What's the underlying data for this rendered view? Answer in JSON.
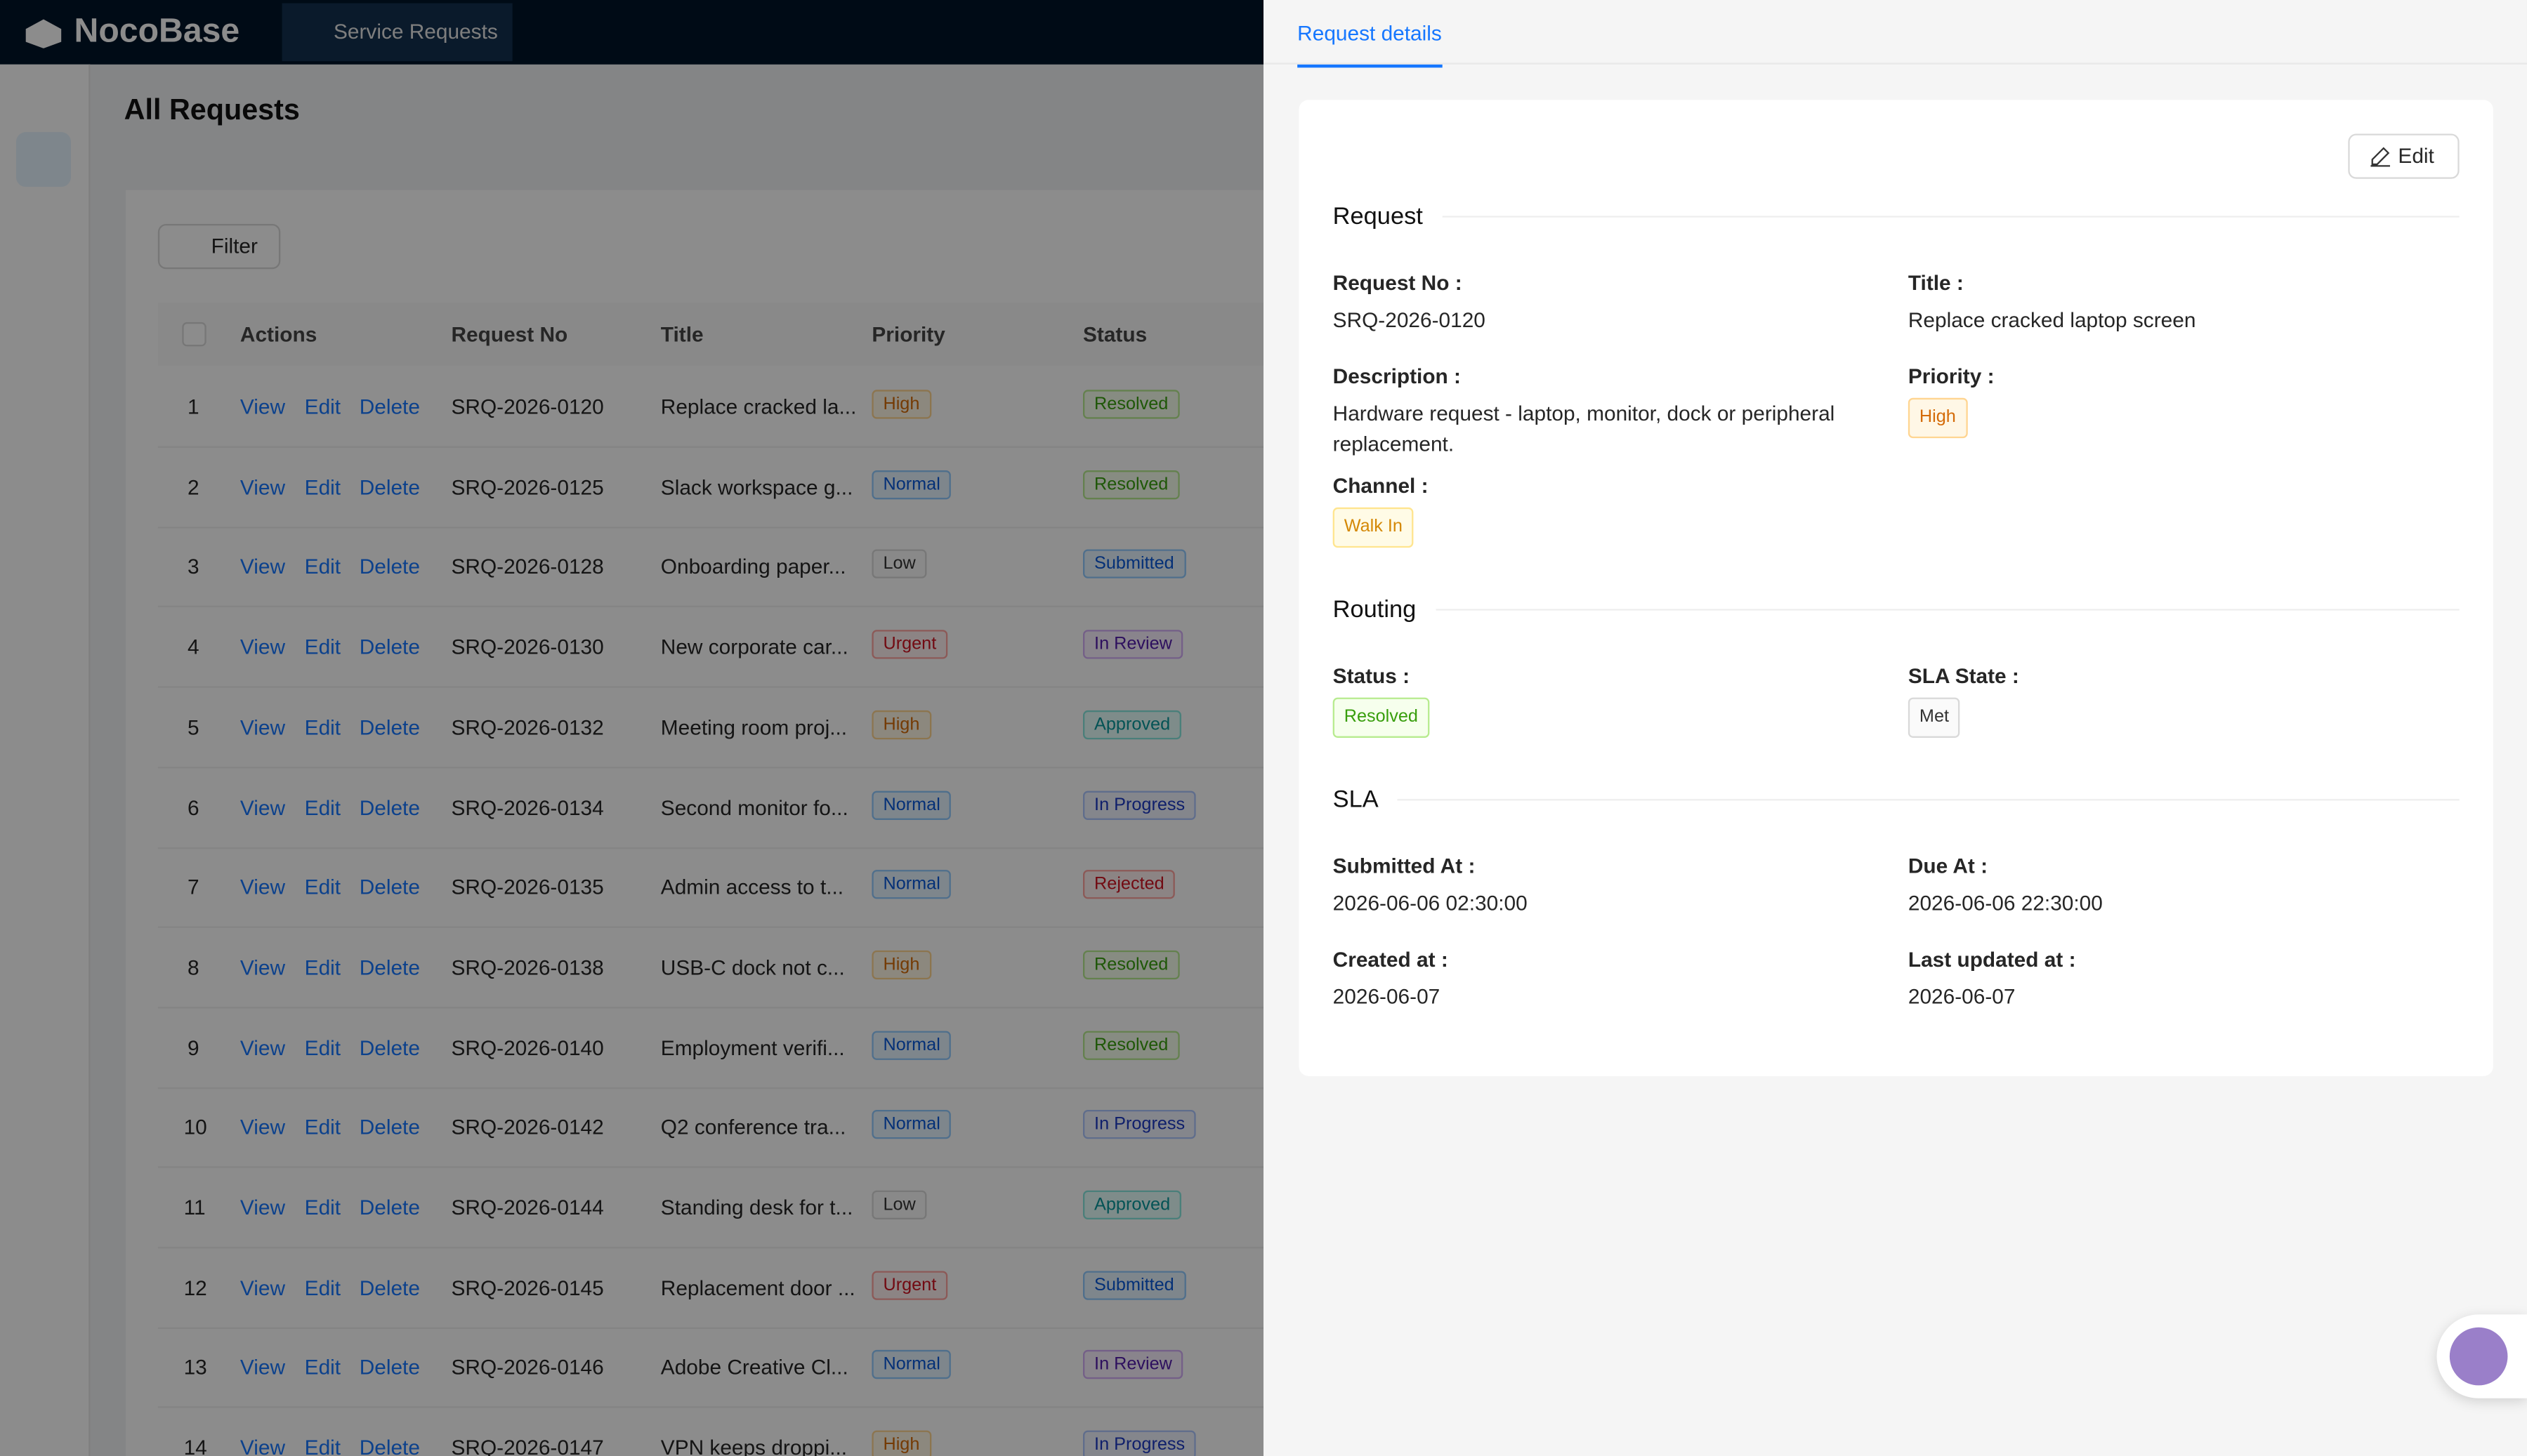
{
  "header": {
    "logo": "NocoBase",
    "menu_item": "Service Requests"
  },
  "page": {
    "title": "All Requests",
    "filter_button": "Filter"
  },
  "table": {
    "columns": [
      "Actions",
      "Request No",
      "Title",
      "Priority",
      "Status"
    ],
    "row_actions": [
      "View",
      "Edit",
      "Delete"
    ],
    "rows": [
      [
        "1",
        "SRQ-2026-0120",
        "Replace cracked la...",
        "High",
        "Resolved"
      ],
      [
        "2",
        "SRQ-2026-0125",
        "Slack workspace g...",
        "Normal",
        "Resolved"
      ],
      [
        "3",
        "SRQ-2026-0128",
        "Onboarding paper...",
        "Low",
        "Submitted"
      ],
      [
        "4",
        "SRQ-2026-0130",
        "New corporate car...",
        "Urgent",
        "In Review"
      ],
      [
        "5",
        "SRQ-2026-0132",
        "Meeting room proj...",
        "High",
        "Approved"
      ],
      [
        "6",
        "SRQ-2026-0134",
        "Second monitor fo...",
        "Normal",
        "In Progress"
      ],
      [
        "7",
        "SRQ-2026-0135",
        "Admin access to t...",
        "Normal",
        "Rejected"
      ],
      [
        "8",
        "SRQ-2026-0138",
        "USB-C dock not c...",
        "High",
        "Resolved"
      ],
      [
        "9",
        "SRQ-2026-0140",
        "Employment verifi...",
        "Normal",
        "Resolved"
      ],
      [
        "10",
        "SRQ-2026-0142",
        "Q2 conference tra...",
        "Normal",
        "In Progress"
      ],
      [
        "11",
        "SRQ-2026-0144",
        "Standing desk for t...",
        "Low",
        "Approved"
      ],
      [
        "12",
        "SRQ-2026-0145",
        "Replacement door ...",
        "Urgent",
        "Submitted"
      ],
      [
        "13",
        "SRQ-2026-0146",
        "Adobe Creative Cl...",
        "Normal",
        "In Review"
      ],
      [
        "14",
        "SRQ-2026-0147",
        "VPN keeps droppi...",
        "High",
        "In Progress"
      ]
    ]
  },
  "drawer": {
    "tab": "Request details",
    "edit_button": "Edit",
    "sections": [
      {
        "title": "Request",
        "fields": [
          {
            "label": "Request No :",
            "value": "SRQ-2026-0120"
          },
          {
            "label": "Title :",
            "value": "Replace cracked laptop screen"
          },
          {
            "label": "Description :",
            "value": "Hardware request - laptop, monitor, dock or peripheral replacement."
          },
          {
            "label": "Priority :",
            "tag": "High"
          },
          {
            "label": "Channel :",
            "tag": "Walk In"
          }
        ]
      },
      {
        "title": "Routing",
        "fields": [
          {
            "label": "Status :",
            "tag": "Resolved"
          },
          {
            "label": "SLA State :",
            "tag": "Met"
          }
        ]
      },
      {
        "title": "SLA",
        "fields": [
          {
            "label": "Submitted At :",
            "value": "2026-06-06 02:30:00"
          },
          {
            "label": "Due At :",
            "value": "2026-06-06 22:30:00"
          },
          {
            "label": "Created at :",
            "value": "2026-06-07"
          },
          {
            "label": "Last updated at :",
            "value": "2026-06-07"
          }
        ]
      }
    ]
  },
  "tag_colors": {
    "High": "orange",
    "Normal": "blue",
    "Low": "gray",
    "Urgent": "red",
    "Resolved": "green",
    "Submitted": "blue",
    "In Review": "purple",
    "Approved": "cyan",
    "In Progress": "geek",
    "Rejected": "red",
    "Walk In": "gold",
    "Met": "gray"
  }
}
